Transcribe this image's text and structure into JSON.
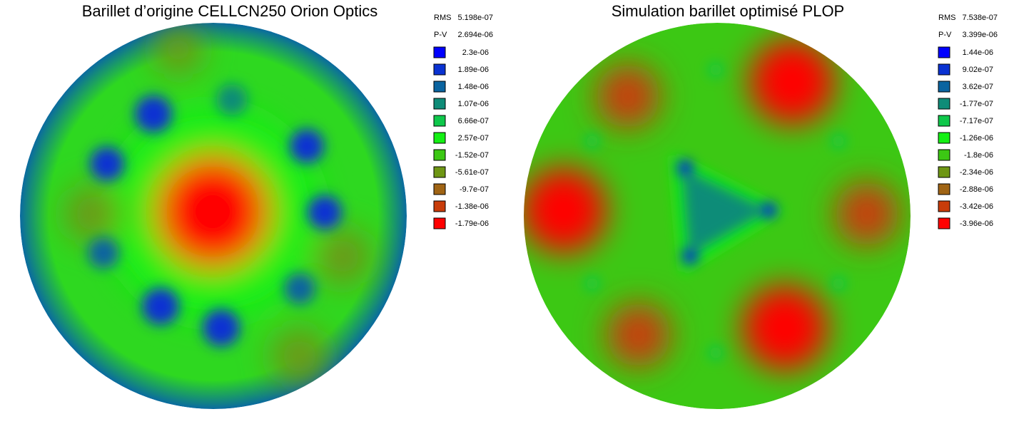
{
  "panels": [
    {
      "title": "Barillet d’origine CELLCN250 Orion Optics",
      "stats": [
        {
          "label": "RMS",
          "value": "5.198e-07"
        },
        {
          "label": "P-V",
          "value": "2.694e-06"
        }
      ],
      "legend": [
        {
          "color": "#0000ff",
          "label": "2.3e-06"
        },
        {
          "color": "#0a32d2",
          "label": "1.89e-06"
        },
        {
          "color": "#0a64a0",
          "label": "1.48e-06"
        },
        {
          "color": "#0f8c78",
          "label": "1.07e-06"
        },
        {
          "color": "#0fc84b",
          "label": "6.66e-07"
        },
        {
          "color": "#14f014",
          "label": "2.57e-07"
        },
        {
          "color": "#3cc814",
          "label": "-1.52e-07"
        },
        {
          "color": "#6e9614",
          "label": "-5.61e-07"
        },
        {
          "color": "#a06414",
          "label": "-9.7e-07"
        },
        {
          "color": "#c83c0a",
          "label": "-1.38e-06"
        },
        {
          "color": "#ff0000",
          "label": "-1.79e-06"
        }
      ]
    },
    {
      "title": "Simulation barillet optimisé PLOP",
      "stats": [
        {
          "label": "RMS",
          "value": "7.538e-07"
        },
        {
          "label": "P-V",
          "value": "3.399e-06"
        }
      ],
      "legend": [
        {
          "color": "#0000ff",
          "label": "1.44e-06"
        },
        {
          "color": "#0a32d2",
          "label": "9.02e-07"
        },
        {
          "color": "#0a64a0",
          "label": "3.62e-07"
        },
        {
          "color": "#0f8c78",
          "label": "-1.77e-07"
        },
        {
          "color": "#0fc84b",
          "label": "-7.17e-07"
        },
        {
          "color": "#14f014",
          "label": "-1.26e-06"
        },
        {
          "color": "#3cc814",
          "label": "-1.8e-06"
        },
        {
          "color": "#6e9614",
          "label": "-2.34e-06"
        },
        {
          "color": "#a06414",
          "label": "-2.88e-06"
        },
        {
          "color": "#c83c0a",
          "label": "-3.42e-06"
        },
        {
          "color": "#ff0000",
          "label": "-3.96e-06"
        }
      ]
    }
  ]
}
